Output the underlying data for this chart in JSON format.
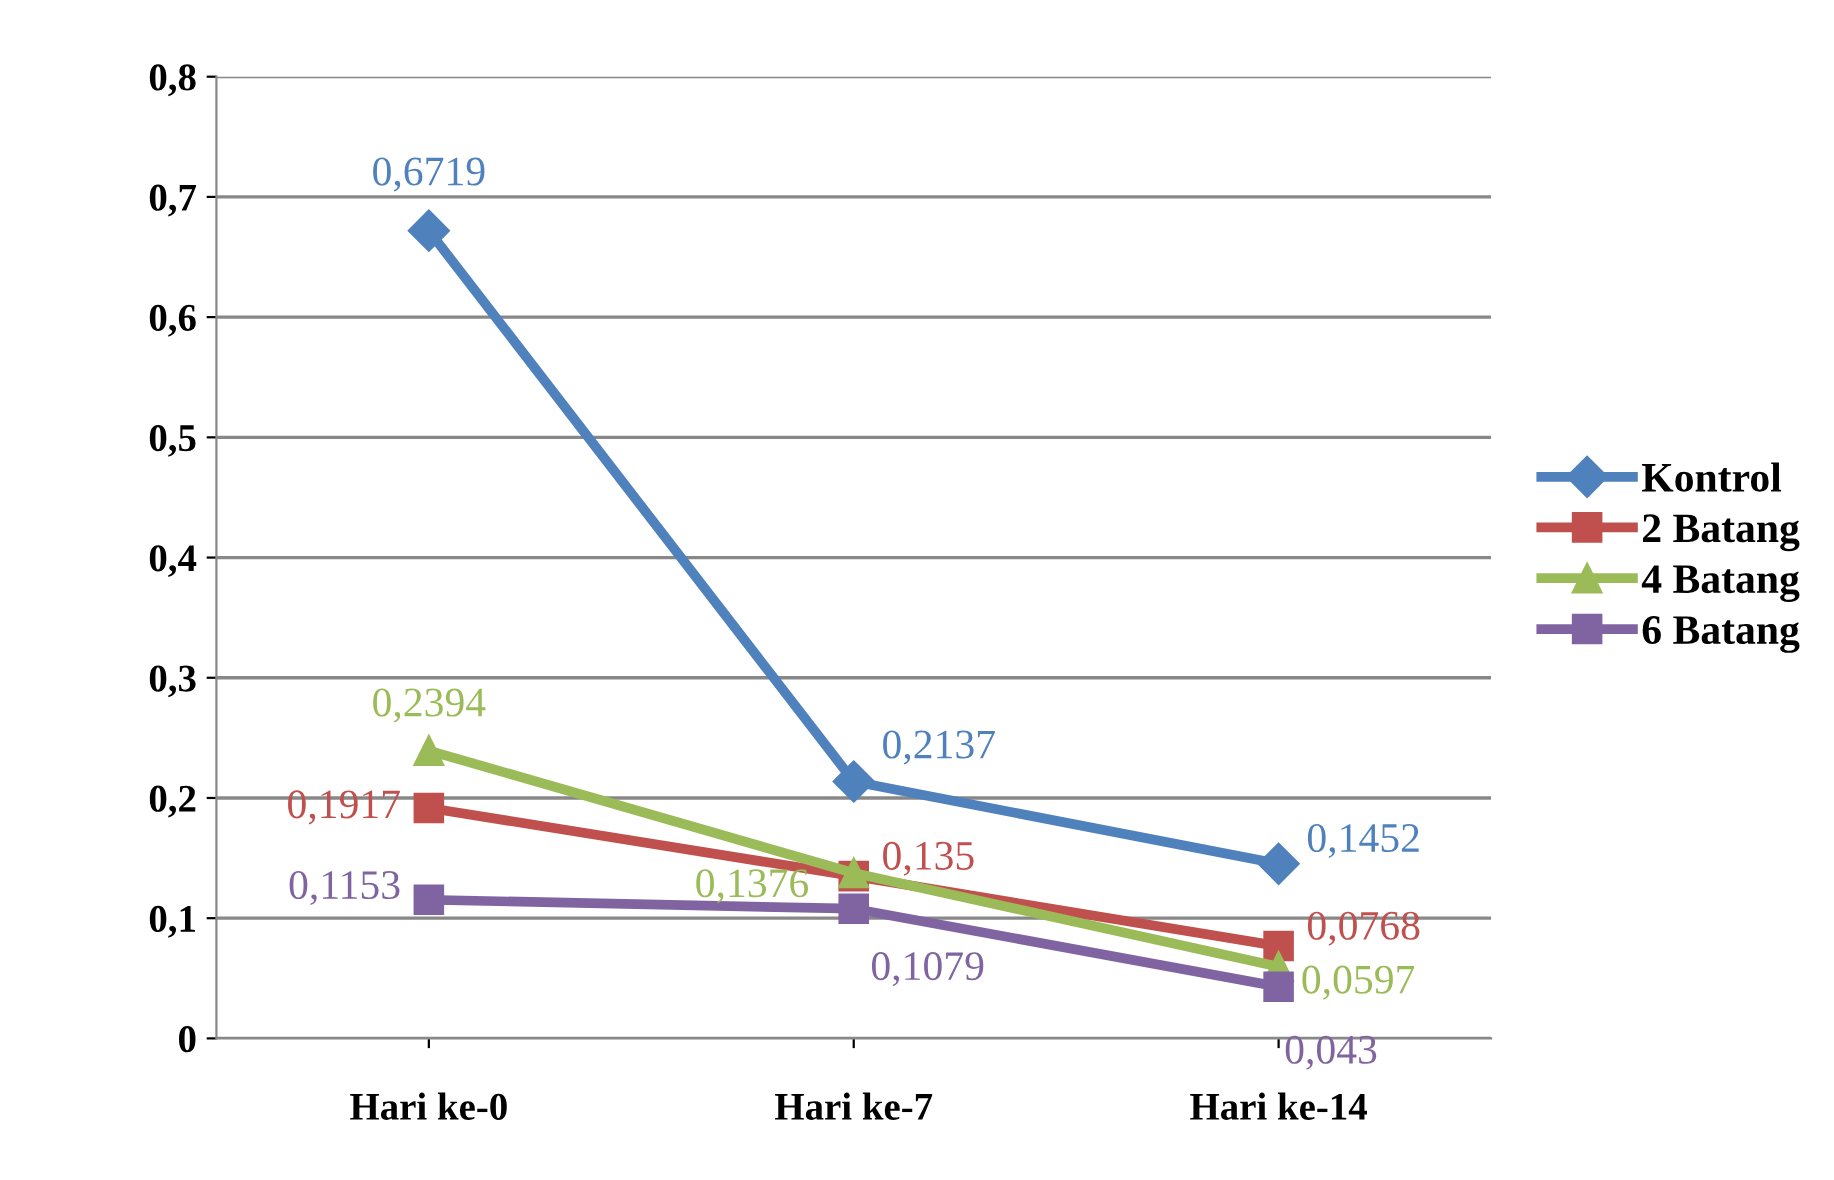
{
  "chart_data": {
    "type": "line",
    "categories": [
      "Hari ke-0",
      "Hari ke-7",
      "Hari ke-14"
    ],
    "series": [
      {
        "name": "Kontrol",
        "color": "#4f81bd",
        "marker": "diamond",
        "values": [
          0.6719,
          0.2137,
          0.1452
        ],
        "value_labels": [
          "0,6719",
          "0,2137",
          "0,1452"
        ]
      },
      {
        "name": "2 Batang",
        "color": "#c0504d",
        "marker": "square",
        "values": [
          0.1917,
          0.135,
          0.0768
        ],
        "value_labels": [
          "0,1917",
          "0,135",
          "0,0768"
        ]
      },
      {
        "name": "4 Batang",
        "color": "#9bbb59",
        "marker": "triangle",
        "values": [
          0.2394,
          0.1376,
          0.0597
        ],
        "value_labels": [
          "0,2394",
          "0,1376",
          "0,0597"
        ]
      },
      {
        "name": "6 Batang",
        "color": "#8064a2",
        "marker": "square",
        "values": [
          0.1153,
          0.1079,
          0.043
        ],
        "value_labels": [
          "0,1153",
          "0,1079",
          "0,043"
        ]
      }
    ],
    "ylim": [
      0,
      0.8
    ],
    "yticks": [
      {
        "value": 0,
        "label": "0"
      },
      {
        "value": 0.1,
        "label": "0,1"
      },
      {
        "value": 0.2,
        "label": "0,2"
      },
      {
        "value": 0.3,
        "label": "0,3"
      },
      {
        "value": 0.4,
        "label": "0,4"
      },
      {
        "value": 0.5,
        "label": "0,5"
      },
      {
        "value": 0.6,
        "label": "0,6"
      },
      {
        "value": 0.7,
        "label": "0,7"
      },
      {
        "value": 0.8,
        "label": "0,8"
      }
    ],
    "grid": "y",
    "legend": "right",
    "line_style": "solid"
  }
}
